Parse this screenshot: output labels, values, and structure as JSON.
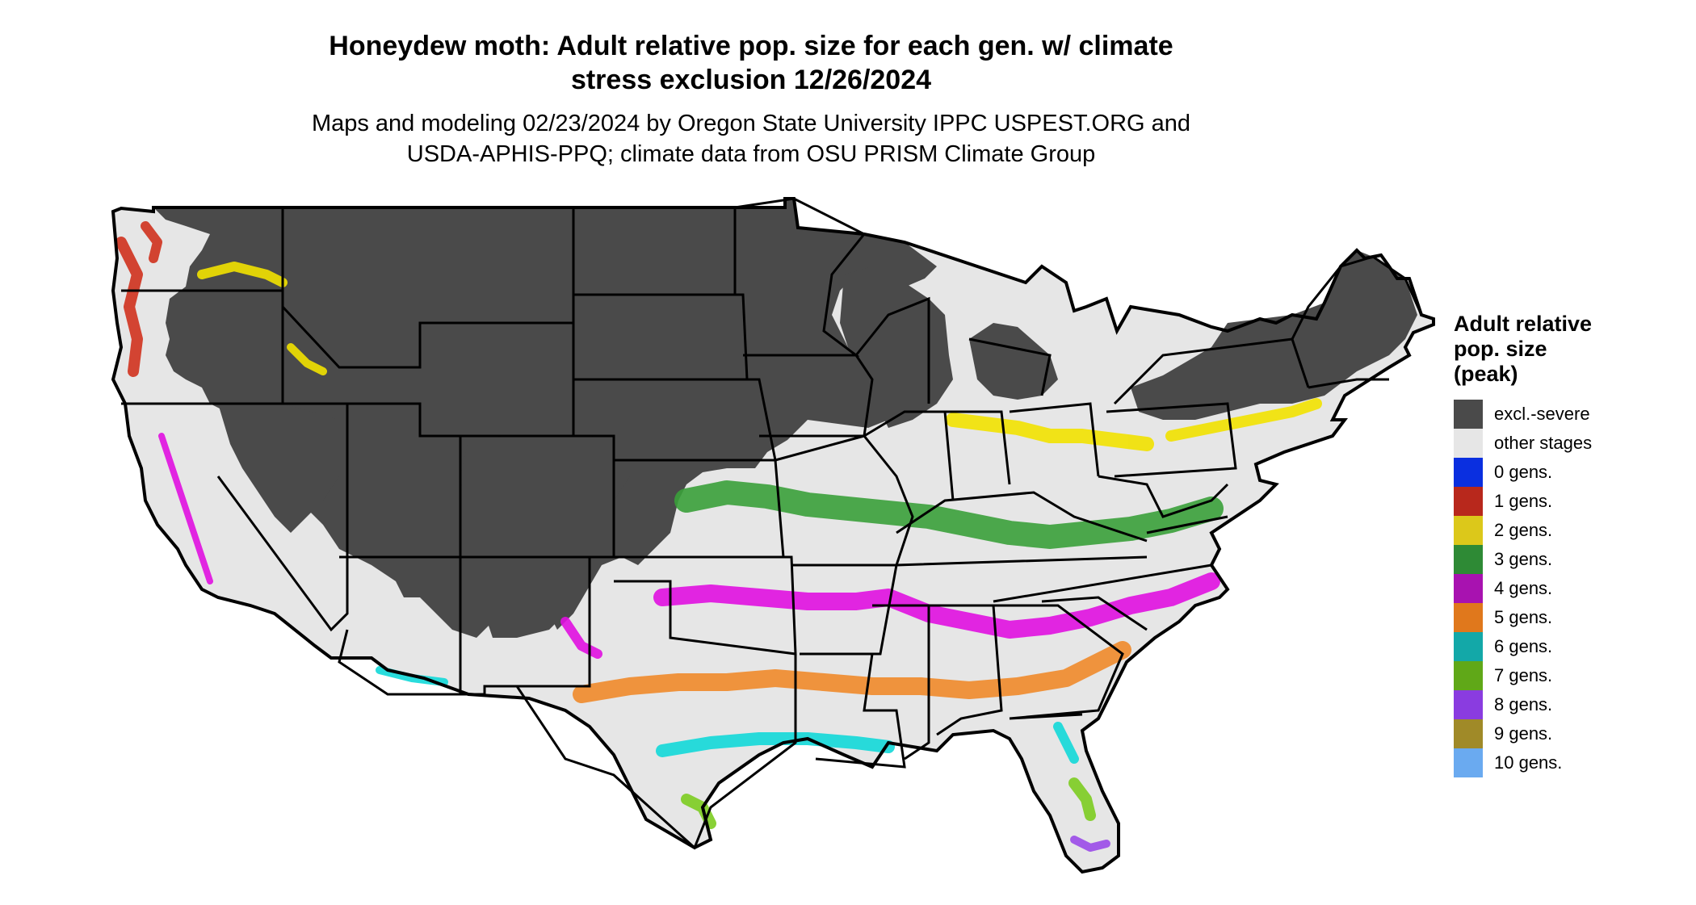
{
  "title": {
    "line1": "Honeydew moth: Adult relative pop. size for each gen. w/ climate",
    "line2": "stress exclusion 12/26/2024"
  },
  "subtitle": {
    "line1": "Maps and modeling 02/23/2024 by Oregon State University IPPC USPEST.ORG and",
    "line2": "USDA-APHIS-PPQ; climate data from OSU PRISM Climate Group"
  },
  "legend": {
    "title_line1": "Adult relative",
    "title_line2": "pop. size",
    "title_line3": "(peak)",
    "items": [
      {
        "label": "excl.-severe",
        "color": "#4a4a4a"
      },
      {
        "label": "other stages",
        "color": "#e6e6e6"
      },
      {
        "label": "0 gens.",
        "color": "#0a2fe0"
      },
      {
        "label": "1 gens.",
        "color": "#b8281c"
      },
      {
        "label": "2 gens.",
        "color": "#dcc81a"
      },
      {
        "label": "3 gens.",
        "color": "#2e8a35"
      },
      {
        "label": "4 gens.",
        "color": "#a812b0"
      },
      {
        "label": "5 gens.",
        "color": "#e0781c"
      },
      {
        "label": "6 gens.",
        "color": "#13a8a8"
      },
      {
        "label": "7 gens.",
        "color": "#60a818"
      },
      {
        "label": "8 gens.",
        "color": "#8a3ce0"
      },
      {
        "label": "9 gens.",
        "color": "#a08a28"
      },
      {
        "label": "10 gens.",
        "color": "#6aaaf0"
      }
    ]
  },
  "map_colors": {
    "excluded": "#4a4a4a",
    "other": "#e6e6e6",
    "gen1": "#d0321e",
    "gen2": "#f2e200",
    "gen3": "#3aa03a",
    "gen4": "#e010e0",
    "gen5": "#f08a2a",
    "gen6": "#12d8d8",
    "gen7": "#7ccc20",
    "gen8": "#9a4ae8"
  }
}
